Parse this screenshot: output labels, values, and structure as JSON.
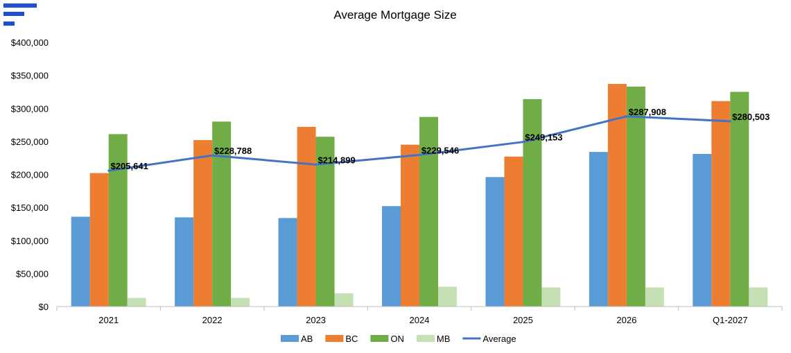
{
  "colors": {
    "brand": "#1f4fd1",
    "AB": "#5b9bd5",
    "BC": "#ed7d31",
    "ON": "#70ad47",
    "MB": "#c5e0b4",
    "Average": "#4472c4",
    "axis": "#bfbfbf"
  },
  "logo": {
    "icon": "bars-logo-icon"
  },
  "chart_data": {
    "type": "bar",
    "title": "Average Mortgage Size",
    "xlabel": "",
    "ylabel": "",
    "categories": [
      "2021",
      "2022",
      "2023",
      "2024",
      "2025",
      "2026",
      "Q1-2027"
    ],
    "ylim": [
      0,
      400000
    ],
    "yticks": [
      0,
      50000,
      100000,
      150000,
      200000,
      250000,
      300000,
      350000,
      400000
    ],
    "ytick_labels": [
      "$0",
      "$50,000",
      "$100,000",
      "$150,000",
      "$200,000",
      "$250,000",
      "$300,000",
      "$350,000",
      "$400,000"
    ],
    "grid": false,
    "legend_position": "bottom",
    "series": [
      {
        "name": "AB",
        "type": "bar",
        "values": [
          136000,
          135000,
          134000,
          152000,
          196000,
          234000,
          231000
        ]
      },
      {
        "name": "BC",
        "type": "bar",
        "values": [
          202000,
          252000,
          272000,
          245000,
          227000,
          337000,
          311000
        ]
      },
      {
        "name": "ON",
        "type": "bar",
        "values": [
          261000,
          280000,
          257000,
          287000,
          314000,
          333000,
          325000
        ]
      },
      {
        "name": "MB",
        "type": "bar",
        "values": [
          13000,
          13000,
          20000,
          30000,
          29000,
          29000,
          29000
        ]
      },
      {
        "name": "Average",
        "type": "line",
        "values": [
          205641,
          228788,
          214899,
          229546,
          249153,
          287908,
          280503
        ],
        "labels": [
          "$205,641",
          "$228,788",
          "$214,899",
          "$229,546",
          "$249,153",
          "$287,908",
          "$280,503"
        ]
      }
    ]
  }
}
